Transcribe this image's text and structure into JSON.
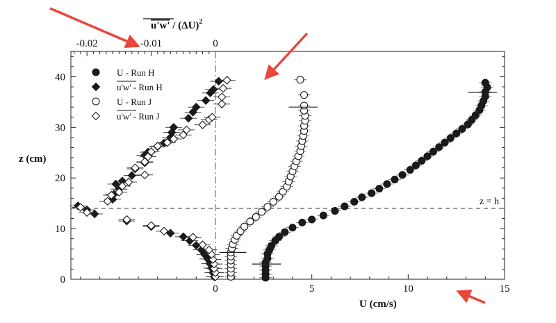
{
  "chart_data": {
    "type": "scatter",
    "top_axis": {
      "label_main": "u'w'",
      "label_rest": " / (ΔU)",
      "label_exp": "2",
      "range": [
        -0.0225,
        0.0
      ],
      "ticks": [
        {
          "v": -0.02,
          "t": "-0.02"
        },
        {
          "v": -0.01,
          "t": "-0.01"
        },
        {
          "v": 0.0,
          "t": "0"
        }
      ]
    },
    "bottom_axis": {
      "label": "U (cm/s)",
      "range": [
        -7.5,
        15
      ],
      "ticks": [
        {
          "v": 0,
          "t": "0"
        },
        {
          "v": 5,
          "t": "5"
        },
        {
          "v": 10,
          "t": "10"
        },
        {
          "v": 15,
          "t": "15"
        }
      ]
    },
    "left_axis": {
      "label": "z (cm)",
      "range": [
        0,
        45
      ],
      "ticks": [
        {
          "v": 0,
          "t": "0"
        },
        {
          "v": 10,
          "t": "10"
        },
        {
          "v": 20,
          "t": "20"
        },
        {
          "v": 30,
          "t": "30"
        },
        {
          "v": 40,
          "t": "40"
        }
      ]
    },
    "reference_line": {
      "z": 14,
      "label": "z = h"
    },
    "legend": [
      {
        "marker": "circle-filled",
        "label": "U - Run H"
      },
      {
        "marker": "diamond-filled",
        "label_over": "u'w'",
        "label": " - Run H"
      },
      {
        "marker": "circle-open",
        "label": "U - Run J"
      },
      {
        "marker": "diamond-open",
        "label_over": "u'w'",
        "label": " - Run J"
      }
    ],
    "series": [
      {
        "name": "U - Run H",
        "marker": "circle-filled",
        "axis": "U",
        "points": [
          [
            2.6,
            0.3
          ],
          [
            2.6,
            1.0
          ],
          [
            2.6,
            1.8
          ],
          [
            2.6,
            2.6
          ],
          [
            2.6,
            3.3
          ],
          [
            2.7,
            4.1
          ],
          [
            2.7,
            5.0
          ],
          [
            2.8,
            5.8
          ],
          [
            2.9,
            6.6
          ],
          [
            3.1,
            7.6
          ],
          [
            3.3,
            8.4
          ],
          [
            3.6,
            9.3
          ],
          [
            4.0,
            10.2
          ],
          [
            4.5,
            11.2
          ],
          [
            5.0,
            11.8
          ],
          [
            5.6,
            12.6
          ],
          [
            6.2,
            13.5
          ],
          [
            6.7,
            14.4
          ],
          [
            7.2,
            15.3
          ],
          [
            7.6,
            16.2
          ],
          [
            8.1,
            17.0
          ],
          [
            8.5,
            17.9
          ],
          [
            8.9,
            18.8
          ],
          [
            9.3,
            19.7
          ],
          [
            9.7,
            20.6
          ],
          [
            10.1,
            21.6
          ],
          [
            10.4,
            22.5
          ],
          [
            10.7,
            23.4
          ],
          [
            11.0,
            24.3
          ],
          [
            11.3,
            25.2
          ],
          [
            11.6,
            26.1
          ],
          [
            11.9,
            27.0
          ],
          [
            12.2,
            27.9
          ],
          [
            12.5,
            28.8
          ],
          [
            12.8,
            29.7
          ],
          [
            13.1,
            30.6
          ],
          [
            13.3,
            31.5
          ],
          [
            13.5,
            32.4
          ],
          [
            13.7,
            33.4
          ],
          [
            13.8,
            34.3
          ],
          [
            13.9,
            35.2
          ],
          [
            14.0,
            36.1
          ],
          [
            14.0,
            37.0
          ],
          [
            14.1,
            37.9
          ],
          [
            14.0,
            38.8
          ]
        ]
      },
      {
        "name": "u'w' - Run H",
        "marker": "diamond-filled",
        "axis": "uw",
        "points": [
          [
            -0.0002,
            0.5
          ],
          [
            -0.0004,
            1.3
          ],
          [
            -0.0006,
            2.2
          ],
          [
            -0.0009,
            3.1
          ],
          [
            -0.0012,
            4.0
          ],
          [
            -0.0017,
            4.9
          ],
          [
            -0.0022,
            5.8
          ],
          [
            -0.003,
            6.7
          ],
          [
            -0.004,
            7.6
          ],
          [
            -0.005,
            8.4
          ],
          [
            -0.007,
            9.1
          ],
          [
            -0.01,
            10.4
          ],
          [
            -0.0138,
            11.5
          ],
          [
            -0.0188,
            12.9
          ],
          [
            -0.02,
            13.7
          ],
          [
            -0.0214,
            14.5
          ],
          [
            -0.016,
            15.8
          ],
          [
            -0.0158,
            16.8
          ],
          [
            -0.015,
            17.8
          ],
          [
            -0.0155,
            18.8
          ],
          [
            -0.0145,
            19.4
          ],
          [
            -0.013,
            20.5
          ],
          [
            -0.0125,
            21.8
          ],
          [
            -0.011,
            23.0
          ],
          [
            -0.011,
            24.5
          ],
          [
            -0.0105,
            25.1
          ],
          [
            -0.009,
            26.2
          ],
          [
            -0.008,
            26.9
          ],
          [
            -0.007,
            28.0
          ],
          [
            -0.0068,
            29.0
          ],
          [
            -0.0065,
            30.0
          ],
          [
            -0.0042,
            31.8
          ],
          [
            -0.0035,
            33.0
          ],
          [
            -0.003,
            34.0
          ],
          [
            -0.0015,
            35.3
          ],
          [
            -0.0008,
            36.8
          ],
          [
            -0.0003,
            37.5
          ],
          [
            0.0005,
            39.1
          ]
        ]
      },
      {
        "name": "U - Run J",
        "marker": "circle-open",
        "axis": "U",
        "points": [
          [
            0.8,
            0.5
          ],
          [
            0.8,
            1.3
          ],
          [
            0.8,
            2.1
          ],
          [
            0.8,
            2.9
          ],
          [
            0.8,
            3.7
          ],
          [
            0.8,
            4.5
          ],
          [
            0.8,
            5.3
          ],
          [
            0.85,
            6.1
          ],
          [
            0.9,
            6.9
          ],
          [
            1.0,
            7.8
          ],
          [
            1.1,
            8.6
          ],
          [
            1.3,
            9.5
          ],
          [
            1.5,
            10.4
          ],
          [
            1.8,
            11.4
          ],
          [
            2.1,
            12.3
          ],
          [
            2.4,
            13.3
          ],
          [
            2.7,
            14.3
          ],
          [
            3.0,
            15.3
          ],
          [
            3.3,
            16.3
          ],
          [
            3.5,
            17.3
          ],
          [
            3.7,
            18.3
          ],
          [
            3.8,
            19.3
          ],
          [
            3.9,
            20.3
          ],
          [
            4.0,
            21.3
          ],
          [
            4.1,
            22.3
          ],
          [
            4.2,
            23.3
          ],
          [
            4.3,
            24.3
          ],
          [
            4.4,
            25.3
          ],
          [
            4.45,
            26.3
          ],
          [
            4.5,
            27.3
          ],
          [
            4.55,
            28.3
          ],
          [
            4.6,
            29.3
          ],
          [
            4.6,
            30.3
          ],
          [
            4.65,
            31.3
          ],
          [
            4.65,
            32.3
          ],
          [
            4.6,
            33.3
          ],
          [
            4.6,
            34.3
          ],
          [
            4.6,
            36.4
          ],
          [
            4.4,
            39.4
          ]
        ]
      },
      {
        "name": "u'w' - Run J",
        "marker": "diamond-open",
        "axis": "uw",
        "points": [
          [
            0.0,
            0.5
          ],
          [
            0.0,
            1.3
          ],
          [
            -0.0002,
            2.1
          ],
          [
            -0.0002,
            3.0
          ],
          [
            -0.0004,
            3.9
          ],
          [
            -0.0006,
            4.9
          ],
          [
            -0.001,
            5.8
          ],
          [
            -0.002,
            6.8
          ],
          [
            -0.0035,
            8.3
          ],
          [
            -0.008,
            9.5
          ],
          [
            -0.01,
            10.6
          ],
          [
            -0.0138,
            11.8
          ],
          [
            -0.02,
            13.2
          ],
          [
            -0.021,
            14.2
          ],
          [
            -0.0168,
            15.4
          ],
          [
            -0.0162,
            16.6
          ],
          [
            -0.015,
            17.2
          ],
          [
            -0.0145,
            18.4
          ],
          [
            -0.0135,
            19.2
          ],
          [
            -0.011,
            20.6
          ],
          [
            -0.0125,
            22.0
          ],
          [
            -0.011,
            23.2
          ],
          [
            -0.0105,
            24.2
          ],
          [
            -0.01,
            25.2
          ],
          [
            -0.009,
            26.3
          ],
          [
            -0.0075,
            27.0
          ],
          [
            -0.0065,
            27.7
          ],
          [
            -0.005,
            28.5
          ],
          [
            -0.0045,
            29.5
          ],
          [
            -0.002,
            30.5
          ],
          [
            -0.001,
            31.5
          ],
          [
            -0.0005,
            32.0
          ],
          [
            0.001,
            34.6
          ],
          [
            0.001,
            36.0
          ],
          [
            0.0012,
            37.7
          ],
          [
            0.0018,
            39.3
          ]
        ]
      }
    ],
    "annotation_arrows_color": "#e8473b"
  }
}
